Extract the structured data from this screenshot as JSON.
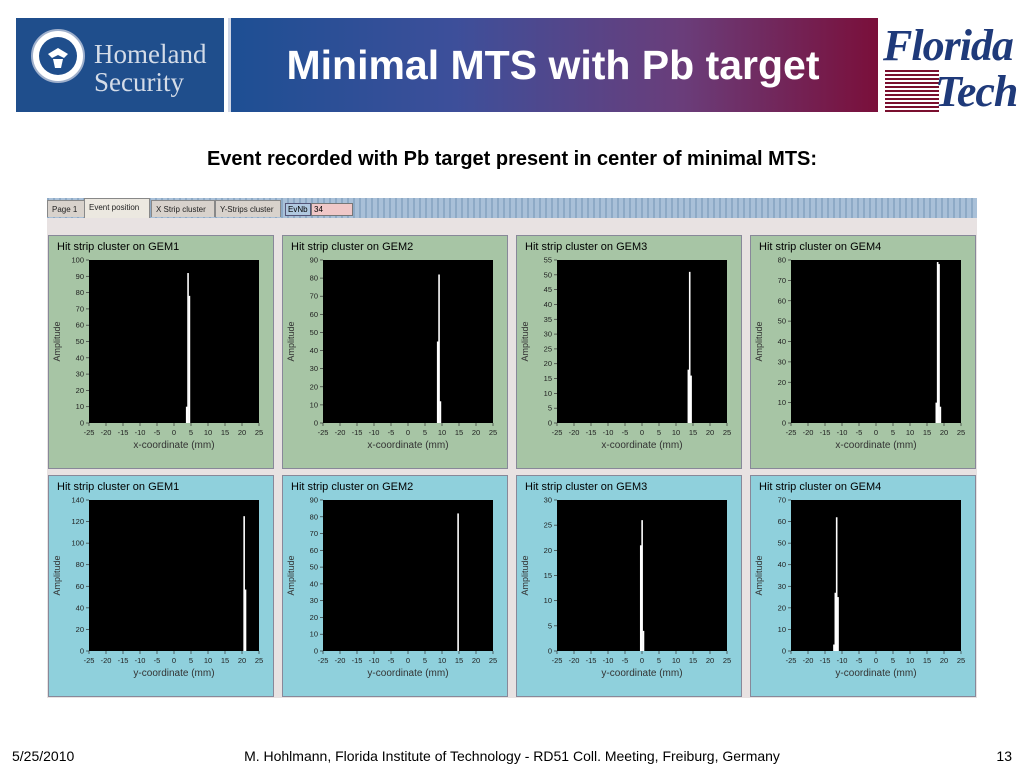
{
  "header": {
    "dhs_logo_text": "Homeland\nSecurity",
    "title": "Minimal MTS with Pb target",
    "fit_logo_line1": "Florida",
    "fit_logo_line2": "Tech"
  },
  "subtitle": "Event recorded with Pb target present in center of minimal MTS:",
  "app": {
    "tabs": [
      "Page 1",
      "Event position",
      "X Strip cluster",
      "Y-Strips cluster"
    ],
    "active_tab": 1,
    "evnb_label": "EvNb",
    "evnb_value": "34"
  },
  "chart_data": [
    {
      "type": "bar",
      "title": "Hit strip cluster on GEM1",
      "xlabel": "x-coordinate (mm)",
      "ylabel": "Amplitude",
      "xlim": [
        -25,
        25
      ],
      "ylim": [
        0,
        100
      ],
      "yticks": [
        0,
        10,
        20,
        30,
        40,
        50,
        60,
        70,
        80,
        90,
        100
      ],
      "xticks": [
        -25,
        -20,
        -15,
        -10,
        -5,
        0,
        5,
        10,
        15,
        20,
        25
      ],
      "bars": [
        {
          "x": 3.7,
          "y": 10
        },
        {
          "x": 4.1,
          "y": 92
        },
        {
          "x": 4.5,
          "y": 78
        }
      ]
    },
    {
      "type": "bar",
      "title": "Hit strip cluster on GEM2",
      "xlabel": "x-coordinate (mm)",
      "ylabel": "Amplitude",
      "xlim": [
        -25,
        25
      ],
      "ylim": [
        0,
        90
      ],
      "yticks": [
        0,
        10,
        20,
        30,
        40,
        50,
        60,
        70,
        80,
        90
      ],
      "xticks": [
        -25,
        -20,
        -15,
        -10,
        -5,
        0,
        5,
        10,
        15,
        20,
        25
      ],
      "bars": [
        {
          "x": 8.7,
          "y": 45
        },
        {
          "x": 9.1,
          "y": 82
        },
        {
          "x": 9.5,
          "y": 12
        }
      ]
    },
    {
      "type": "bar",
      "title": "Hit strip cluster on GEM3",
      "xlabel": "x-coordinate (mm)",
      "ylabel": "Amplitude",
      "xlim": [
        -25,
        25
      ],
      "ylim": [
        0,
        55
      ],
      "yticks": [
        0,
        5,
        10,
        15,
        20,
        25,
        30,
        35,
        40,
        45,
        50,
        55
      ],
      "xticks": [
        -25,
        -20,
        -15,
        -10,
        -5,
        0,
        5,
        10,
        15,
        20,
        25
      ],
      "bars": [
        {
          "x": 13.6,
          "y": 18
        },
        {
          "x": 14.0,
          "y": 51
        },
        {
          "x": 14.4,
          "y": 16
        }
      ]
    },
    {
      "type": "bar",
      "title": "Hit strip cluster on GEM4",
      "xlabel": "x-coordinate (mm)",
      "ylabel": "Amplitude",
      "xlim": [
        -25,
        25
      ],
      "ylim": [
        0,
        80
      ],
      "yticks": [
        0,
        10,
        20,
        30,
        40,
        50,
        60,
        70,
        80
      ],
      "xticks": [
        -25,
        -20,
        -15,
        -10,
        -5,
        0,
        5,
        10,
        15,
        20,
        25
      ],
      "bars": [
        {
          "x": 17.7,
          "y": 10
        },
        {
          "x": 18.1,
          "y": 79
        },
        {
          "x": 18.5,
          "y": 78
        },
        {
          "x": 18.9,
          "y": 8
        }
      ]
    },
    {
      "type": "bar",
      "title": "Hit strip cluster on GEM1",
      "xlabel": "y-coordinate (mm)",
      "ylabel": "Amplitude",
      "xlim": [
        -25,
        25
      ],
      "ylim": [
        0,
        140
      ],
      "yticks": [
        0,
        20,
        40,
        60,
        80,
        100,
        120,
        140
      ],
      "xticks": [
        -25,
        -20,
        -15,
        -10,
        -5,
        0,
        5,
        10,
        15,
        20,
        25
      ],
      "bars": [
        {
          "x": 20.6,
          "y": 125
        },
        {
          "x": 21.0,
          "y": 57
        }
      ]
    },
    {
      "type": "bar",
      "title": "Hit strip cluster on GEM2",
      "xlabel": "y-coordinate (mm)",
      "ylabel": "Amplitude",
      "xlim": [
        -25,
        25
      ],
      "ylim": [
        0,
        90
      ],
      "yticks": [
        0,
        10,
        20,
        30,
        40,
        50,
        60,
        70,
        80,
        90
      ],
      "xticks": [
        -25,
        -20,
        -15,
        -10,
        -5,
        0,
        5,
        10,
        15,
        20,
        25
      ],
      "bars": [
        {
          "x": 14.7,
          "y": 82
        }
      ]
    },
    {
      "type": "bar",
      "title": "Hit strip cluster on GEM3",
      "xlabel": "y-coordinate (mm)",
      "ylabel": "Amplitude",
      "xlim": [
        -25,
        25
      ],
      "ylim": [
        0,
        30
      ],
      "yticks": [
        0,
        5,
        10,
        15,
        20,
        25,
        30
      ],
      "xticks": [
        -25,
        -20,
        -15,
        -10,
        -5,
        0,
        5,
        10,
        15,
        20,
        25
      ],
      "bars": [
        {
          "x": -0.4,
          "y": 21
        },
        {
          "x": 0.0,
          "y": 26
        },
        {
          "x": 0.4,
          "y": 4
        }
      ]
    },
    {
      "type": "bar",
      "title": "Hit strip cluster on GEM4",
      "xlabel": "y-coordinate (mm)",
      "ylabel": "Amplitude",
      "xlim": [
        -25,
        25
      ],
      "ylim": [
        0,
        70
      ],
      "yticks": [
        0,
        10,
        20,
        30,
        40,
        50,
        60,
        70
      ],
      "xticks": [
        -25,
        -20,
        -15,
        -10,
        -5,
        0,
        5,
        10,
        15,
        20,
        25
      ],
      "bars": [
        {
          "x": -12.4,
          "y": 3
        },
        {
          "x": -12.0,
          "y": 27
        },
        {
          "x": -11.6,
          "y": 62
        },
        {
          "x": -11.2,
          "y": 25
        }
      ]
    }
  ],
  "footer": {
    "date": "5/25/2010",
    "center": "M. Hohlmann, Florida Institute of Technology - RD51 Coll. Meeting, Freiburg, Germany",
    "page": "13"
  }
}
